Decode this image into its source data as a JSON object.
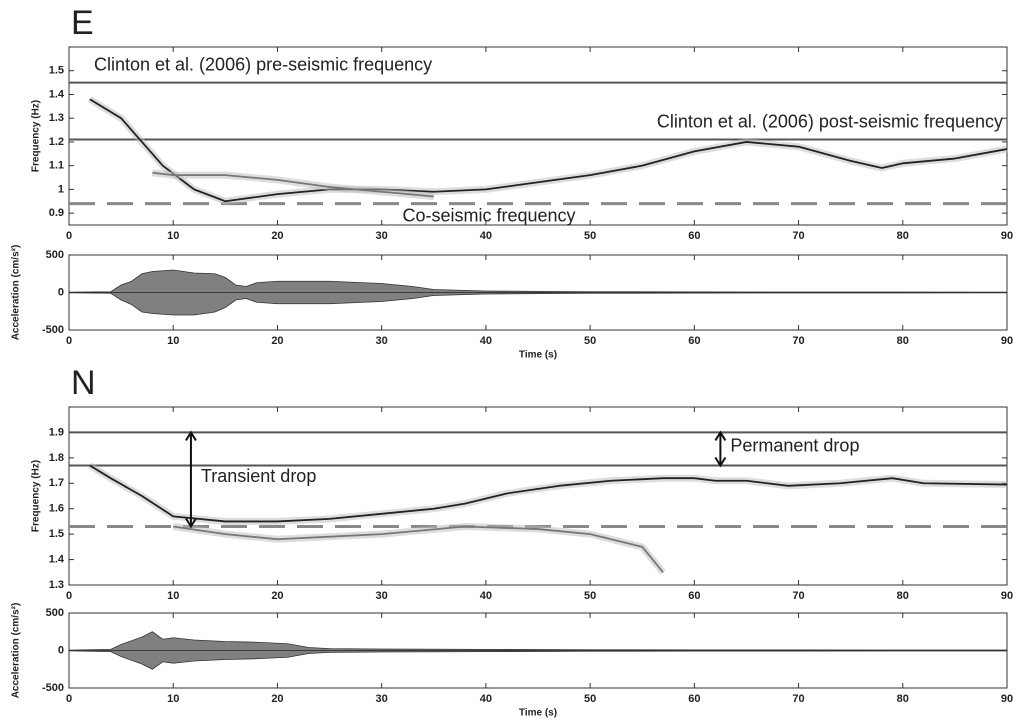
{
  "chart_data": [
    {
      "type": "spectrogram",
      "title": "E",
      "y_label": "Frequency (Hz)",
      "xlim": [
        0,
        90
      ],
      "xticks": [
        0,
        10,
        20,
        30,
        40,
        50,
        60,
        70,
        80,
        90
      ],
      "ylim": [
        0.85,
        1.6
      ],
      "yticks": [
        0.9,
        1,
        1.1,
        1.2,
        1.3,
        1.4,
        1.5
      ],
      "hlines": [
        {
          "value": 1.45,
          "label": "Clinton et al. (2006) pre-seismic frequency",
          "style": "solid"
        },
        {
          "value": 1.21,
          "label": "Clinton et al. (2006) post-seismic frequency",
          "style": "solid"
        },
        {
          "value": 0.94,
          "label": "Co-seismic frequency",
          "style": "dashed"
        }
      ],
      "series": [
        {
          "color": "#222222",
          "x": [
            2,
            5,
            7,
            9,
            12,
            15,
            20,
            25,
            30,
            35,
            40,
            45,
            50,
            55,
            60,
            65,
            70,
            75,
            78,
            80,
            85,
            90
          ],
          "values": [
            1.38,
            1.3,
            1.2,
            1.1,
            1.0,
            0.95,
            0.98,
            1.0,
            1.0,
            0.99,
            1.0,
            1.03,
            1.06,
            1.1,
            1.16,
            1.2,
            1.18,
            1.12,
            1.09,
            1.11,
            1.13,
            1.17
          ]
        },
        {
          "color": "#777777",
          "x": [
            8,
            10,
            15,
            20,
            25,
            30,
            35
          ],
          "values": [
            1.07,
            1.06,
            1.06,
            1.04,
            1.01,
            0.99,
            0.97
          ]
        }
      ]
    },
    {
      "type": "envelope",
      "y_label": "Acceleration (cm/s²)",
      "x_label": "Time (s)",
      "xlim": [
        0,
        90
      ],
      "xticks": [
        0,
        10,
        20,
        30,
        40,
        50,
        60,
        70,
        80,
        90
      ],
      "ylim": [
        -500,
        500
      ],
      "yticks": [
        -500,
        0,
        500
      ],
      "color": "#555555",
      "x": [
        0,
        4,
        5,
        6,
        7,
        8,
        10,
        12,
        14,
        15,
        16,
        17,
        18,
        20,
        25,
        30,
        33,
        35,
        40,
        50,
        60,
        70,
        80,
        90
      ],
      "envelope_max": [
        5,
        10,
        100,
        150,
        250,
        280,
        300,
        260,
        250,
        200,
        100,
        80,
        130,
        150,
        150,
        120,
        80,
        40,
        20,
        10,
        8,
        6,
        6,
        5
      ],
      "envelope_min": [
        -5,
        -10,
        -100,
        -160,
        -260,
        -280,
        -300,
        -300,
        -260,
        -200,
        -100,
        -80,
        -130,
        -150,
        -150,
        -120,
        -80,
        -40,
        -20,
        -10,
        -8,
        -6,
        -6,
        -5
      ]
    },
    {
      "type": "spectrogram",
      "title": "N",
      "y_label": "Frequency (Hz)",
      "xlim": [
        0,
        90
      ],
      "xticks": [
        0,
        10,
        20,
        30,
        40,
        50,
        60,
        70,
        80,
        90
      ],
      "ylim": [
        1.3,
        2.0
      ],
      "yticks": [
        1.3,
        1.4,
        1.5,
        1.6,
        1.7,
        1.8,
        1.9
      ],
      "hlines": [
        {
          "value": 1.9,
          "style": "solid"
        },
        {
          "value": 1.77,
          "style": "solid"
        },
        {
          "value": 1.53,
          "style": "dashed"
        }
      ],
      "annotations": [
        {
          "text": "Transient drop",
          "x": 11.7,
          "from": 1.9,
          "to": 1.53
        },
        {
          "text": "Permanent drop",
          "x": 62.5,
          "from": 1.9,
          "to": 1.77
        }
      ],
      "series": [
        {
          "color": "#222222",
          "x": [
            2,
            4,
            7,
            10,
            15,
            20,
            25,
            30,
            35,
            38,
            42,
            47,
            52,
            57,
            60,
            62,
            65,
            69,
            74,
            79,
            82,
            90
          ],
          "values": [
            1.77,
            1.72,
            1.65,
            1.57,
            1.55,
            1.55,
            1.56,
            1.58,
            1.6,
            1.62,
            1.66,
            1.69,
            1.71,
            1.72,
            1.72,
            1.71,
            1.71,
            1.69,
            1.7,
            1.72,
            1.7,
            1.695
          ]
        },
        {
          "color": "#777777",
          "x": [
            10,
            15,
            20,
            25,
            30,
            38,
            45,
            50,
            55,
            57
          ],
          "values": [
            1.53,
            1.5,
            1.48,
            1.49,
            1.5,
            1.53,
            1.52,
            1.5,
            1.45,
            1.35
          ]
        }
      ]
    },
    {
      "type": "envelope",
      "y_label": "Acceleration (cm/s²)",
      "x_label": "Time (s)",
      "xlim": [
        0,
        90
      ],
      "xticks": [
        0,
        10,
        20,
        30,
        40,
        50,
        60,
        70,
        80,
        90
      ],
      "ylim": [
        -500,
        500
      ],
      "yticks": [
        -500,
        0,
        500
      ],
      "color": "#555555",
      "x": [
        0,
        4,
        5,
        7,
        8,
        9,
        10,
        12,
        15,
        18,
        21,
        23,
        25,
        30,
        40,
        50,
        60,
        70,
        90
      ],
      "envelope_max": [
        5,
        15,
        80,
        180,
        250,
        150,
        170,
        140,
        120,
        110,
        90,
        40,
        25,
        20,
        15,
        10,
        8,
        8,
        6
      ],
      "envelope_min": [
        -5,
        -15,
        -80,
        -180,
        -250,
        -150,
        -170,
        -140,
        -120,
        -110,
        -90,
        -40,
        -25,
        -20,
        -15,
        -10,
        -8,
        -8,
        -6
      ]
    }
  ]
}
